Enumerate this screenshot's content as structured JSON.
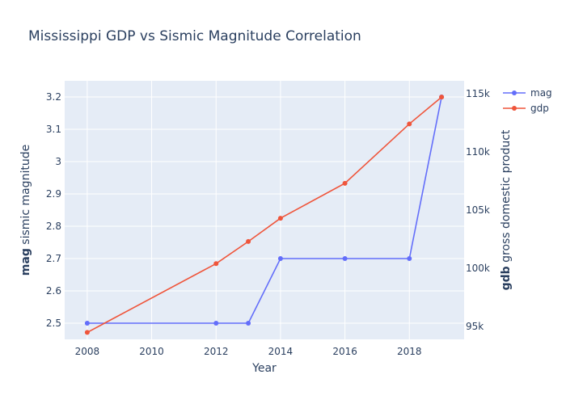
{
  "chart_data": {
    "type": "line",
    "title": "Mississippi GDP vs Sismic Magnitude Correlation",
    "xlabel": "Year",
    "ylabel_left": {
      "bold": "mag",
      "rest": " sismic magnitude"
    },
    "ylabel_right": {
      "bold": "gdb",
      "rest": " gross domestic product"
    },
    "xlim": [
      2007.3,
      2019.7
    ],
    "ylim_left": [
      2.45,
      3.25
    ],
    "ylim_right": [
      93900,
      116100
    ],
    "x_ticks": [
      2008,
      2010,
      2012,
      2014,
      2016,
      2018
    ],
    "x_tick_labels": [
      "2008",
      "2010",
      "2012",
      "2014",
      "2016",
      "2018"
    ],
    "y_left_ticks": [
      2.5,
      2.6,
      2.7,
      2.8,
      2.9,
      3.0,
      3.1,
      3.2
    ],
    "y_left_tick_labels": [
      "2.5",
      "2.6",
      "2.7",
      "2.8",
      "2.9",
      "3",
      "3.1",
      "3.2"
    ],
    "y_right_ticks": [
      95000,
      100000,
      105000,
      110000,
      115000
    ],
    "y_right_tick_labels": [
      "95k",
      "100k",
      "105k",
      "110k",
      "115k"
    ],
    "grid": true,
    "legend_position": "top-right",
    "series": [
      {
        "name": "mag",
        "axis": "left",
        "color": "#636efa",
        "x": [
          2008,
          2012,
          2013,
          2014,
          2016,
          2018,
          2019
        ],
        "y": [
          2.5,
          2.5,
          2.5,
          2.7,
          2.7,
          2.7,
          3.2
        ]
      },
      {
        "name": "gdp",
        "axis": "right",
        "color": "#ef553b",
        "x": [
          2008,
          2012,
          2013,
          2014,
          2016,
          2018,
          2019
        ],
        "y": [
          94500,
          100400,
          102300,
          104300,
          107300,
          112400,
          114700
        ]
      }
    ]
  }
}
